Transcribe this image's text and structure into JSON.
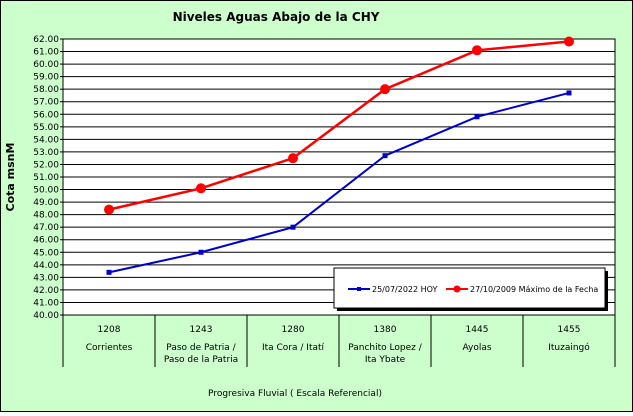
{
  "chart_data": {
    "type": "line",
    "title": "Niveles Aguas Abajo de la CHY",
    "ylabel": "Cota msnM",
    "xlabel": "Progresiva Fluvial ( Escala Referencial)",
    "ylim": [
      40,
      62
    ],
    "ystep": 1,
    "ytick_format": "0.00",
    "grid": true,
    "legend_position": "bottom-right",
    "categories": [
      {
        "km": "1208",
        "name": "Corrientes"
      },
      {
        "km": "1243",
        "name": "Paso de Patria /\nPaso de la Patria"
      },
      {
        "km": "1280",
        "name": "Ita Cora / Itatí"
      },
      {
        "km": "1380",
        "name": "Panchito Lopez /\nIta Ybate"
      },
      {
        "km": "1445",
        "name": "Ayolas"
      },
      {
        "km": "1455",
        "name": "Ituzaingó"
      }
    ],
    "series": [
      {
        "name": "25/07/2022 HOY",
        "color": "#0000cc",
        "marker": "square",
        "values": [
          43.4,
          45.0,
          47.0,
          52.7,
          55.8,
          57.7
        ]
      },
      {
        "name": "27/10/2009 Máximo de la Fecha",
        "color": "#ff0000",
        "marker": "circle",
        "values": [
          48.4,
          50.1,
          52.5,
          58.0,
          61.1,
          61.8
        ]
      }
    ]
  }
}
